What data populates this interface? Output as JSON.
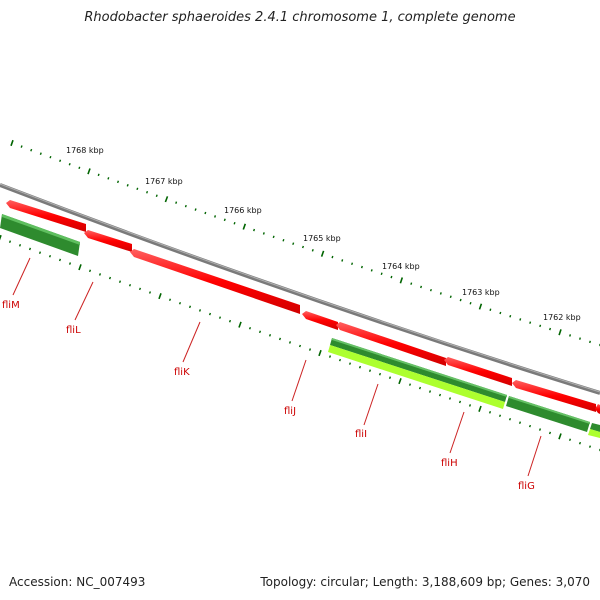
{
  "title": "Rhodobacter sphaeroides 2.4.1 chromosome 1, complete genome",
  "footer": {
    "accession": "Accession: NC_007493",
    "summary": "Topology: circular; Length: 3,188,609 bp; Genes: 3,070"
  },
  "ticks": [
    {
      "label": "1768 kbp"
    },
    {
      "label": "1767 kbp"
    },
    {
      "label": "1766 kbp"
    },
    {
      "label": "1765 kbp"
    },
    {
      "label": "1764 kbp"
    },
    {
      "label": "1763 kbp"
    },
    {
      "label": "1762 kbp"
    }
  ],
  "genes": [
    {
      "name": "fliM"
    },
    {
      "name": "fliL"
    },
    {
      "name": "fliK"
    },
    {
      "name": "fliJ"
    },
    {
      "name": "fliI"
    },
    {
      "name": "fliH"
    },
    {
      "name": "fliG"
    }
  ],
  "colors": {
    "backbone": "#808080",
    "gene": "#ff0000",
    "cds_dark": "#2e8b2e",
    "cds_light": "#adff2f",
    "tick": "#006400",
    "gene_label": "#cc0000"
  }
}
